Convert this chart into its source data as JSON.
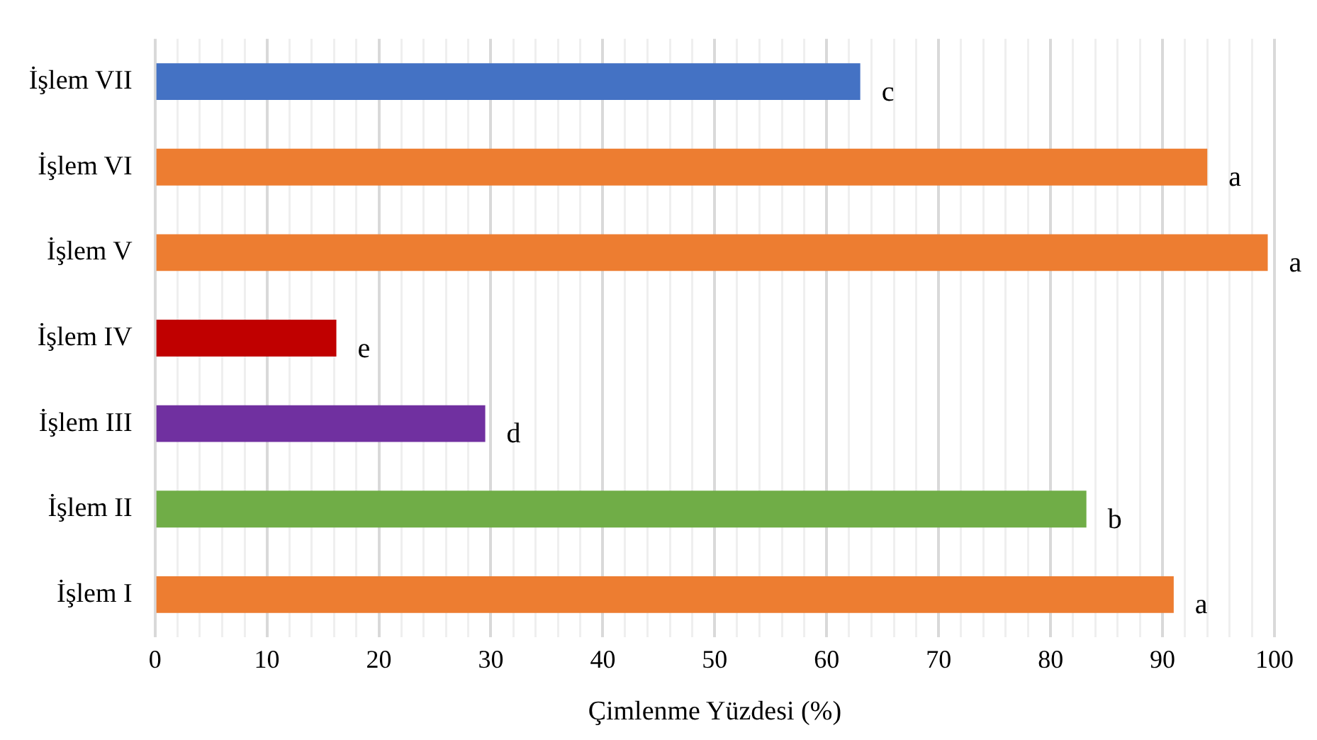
{
  "chart_data": {
    "type": "bar",
    "orientation": "horizontal",
    "xlabel": "Çimlenme Yüzdesi (%)",
    "categories": [
      "İşlem VII",
      "İşlem VI",
      "İşlem V",
      "İşlem IV",
      "İşlem III",
      "İşlem II",
      "İşlem I"
    ],
    "values": [
      63,
      94,
      99.4,
      16.2,
      29.5,
      83.2,
      91
    ],
    "colors": [
      "#4472c4",
      "#ed7d31",
      "#ed7d31",
      "#c00000",
      "#7030a0",
      "#70ad47",
      "#ed7d31"
    ],
    "value_labels": [
      "c",
      "a",
      "a",
      "e",
      "d",
      "b",
      "a"
    ],
    "xlim": [
      0,
      100
    ],
    "xticks": [
      0,
      {
        "value": 2,
        "label": null
      },
      {
        "value": 4,
        "label": null
      },
      {
        "value": 6,
        "label": null
      },
      {
        "value": 8,
        "label": null
      },
      10,
      {
        "value": 12,
        "label": null
      },
      {
        "value": 14,
        "label": null
      },
      {
        "value": 16,
        "label": null
      },
      {
        "value": 18,
        "label": null
      },
      20,
      {
        "value": 22,
        "label": null
      },
      {
        "value": 24,
        "label": null
      },
      {
        "value": 26,
        "label": null
      },
      {
        "value": 28,
        "label": null
      },
      30,
      {
        "value": 32,
        "label": null
      },
      {
        "value": 34,
        "label": null
      },
      {
        "value": 36,
        "label": null
      },
      {
        "value": 38,
        "label": null
      },
      40,
      {
        "value": 42,
        "label": null
      },
      {
        "value": 44,
        "label": null
      },
      {
        "value": 46,
        "label": null
      },
      {
        "value": 48,
        "label": null
      },
      50,
      {
        "value": 52,
        "label": null
      },
      {
        "value": 54,
        "label": null
      },
      {
        "value": 56,
        "label": null
      },
      {
        "value": 58,
        "label": null
      },
      60,
      {
        "value": 62,
        "label": null
      },
      {
        "value": 64,
        "label": null
      },
      {
        "value": 66,
        "label": null
      },
      {
        "value": 68,
        "label": null
      },
      70,
      {
        "value": 72,
        "label": null
      },
      {
        "value": 74,
        "label": null
      },
      {
        "value": 76,
        "label": null
      },
      {
        "value": 78,
        "label": null
      },
      80,
      {
        "value": 82,
        "label": null
      },
      {
        "value": 84,
        "label": null
      },
      {
        "value": 86,
        "label": null
      },
      {
        "value": 88,
        "label": null
      },
      90,
      {
        "value": 92,
        "label": null
      },
      {
        "value": 94,
        "label": null
      },
      {
        "value": 96,
        "label": null
      },
      {
        "value": 98,
        "label": null
      },
      100
    ],
    "grid": "x",
    "legend": false
  }
}
